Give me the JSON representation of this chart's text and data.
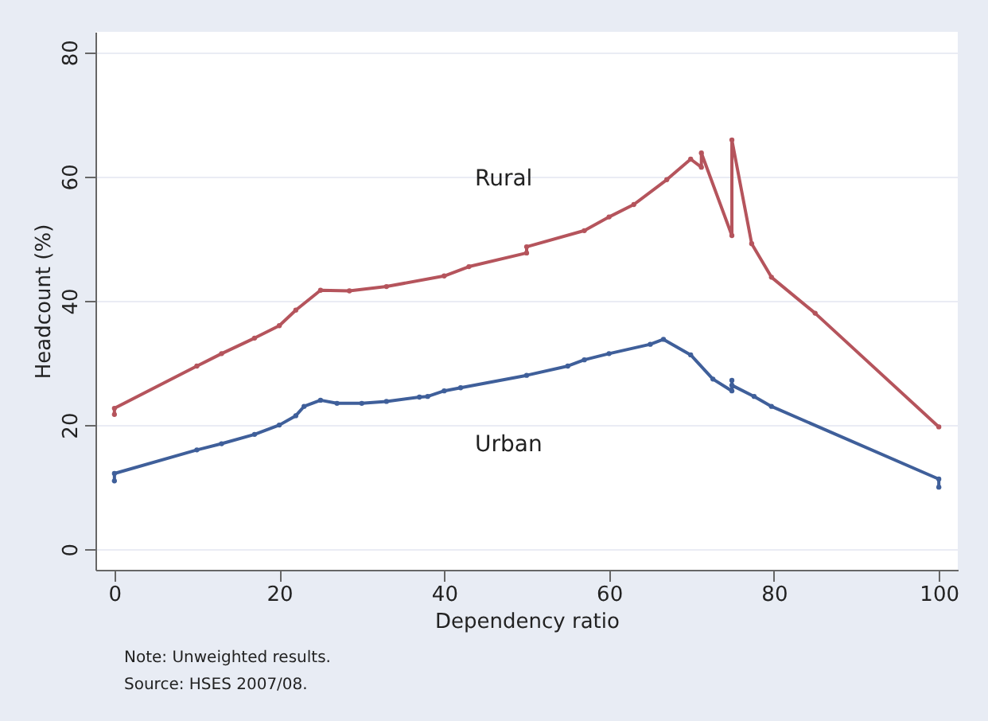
{
  "chart_data": {
    "type": "line",
    "xlabel": "Dependency ratio",
    "ylabel": "Headcount (%)",
    "xlim": [
      -2.3,
      102.3
    ],
    "ylim": [
      -3.3,
      83.3
    ],
    "xticks": [
      0,
      20,
      40,
      60,
      80,
      100
    ],
    "yticks": [
      0,
      20,
      40,
      60,
      80
    ],
    "grid": "y",
    "marker": "circle",
    "line_style": "solid",
    "legend": false,
    "series": [
      {
        "name": "Rural",
        "color": "#b5545c",
        "x": [
          0,
          0,
          10,
          13,
          17,
          20,
          22,
          25,
          28.5,
          33,
          40,
          43,
          50,
          50,
          57,
          60,
          63,
          67,
          69.9,
          71.2,
          71.2,
          74.9,
          74.9,
          77.3,
          79.7,
          85,
          100
        ],
        "values": [
          21.7,
          22.7,
          29.5,
          31.5,
          34,
          36,
          38.5,
          41.7,
          41.6,
          42.3,
          44,
          45.5,
          47.7,
          48.7,
          51.3,
          53.5,
          55.5,
          59.5,
          62.8,
          61.5,
          63.8,
          50.5,
          65.9,
          49.2,
          43.8,
          38,
          19.7
        ]
      },
      {
        "name": "Urban",
        "color": "#3f5f9a",
        "x": [
          0,
          0,
          10,
          13,
          17,
          20,
          22,
          23,
          25,
          27,
          30,
          33,
          37,
          38,
          40,
          42,
          50,
          55,
          57,
          60,
          65,
          66.6,
          69.9,
          72.6,
          74.9,
          74.9,
          74.9,
          77.6,
          79.7,
          100,
          100
        ],
        "values": [
          11,
          12.2,
          16,
          17,
          18.5,
          20,
          21.5,
          23,
          24,
          23.5,
          23.5,
          23.8,
          24.5,
          24.6,
          25.5,
          26,
          28,
          29.5,
          30.5,
          31.5,
          33,
          33.8,
          31.3,
          27.4,
          25.5,
          27.2,
          26.4,
          24.6,
          23,
          11.3,
          10
        ]
      }
    ],
    "annotations": [
      "Note: Unweighted results.",
      "Source: HSES 2007/08."
    ]
  }
}
